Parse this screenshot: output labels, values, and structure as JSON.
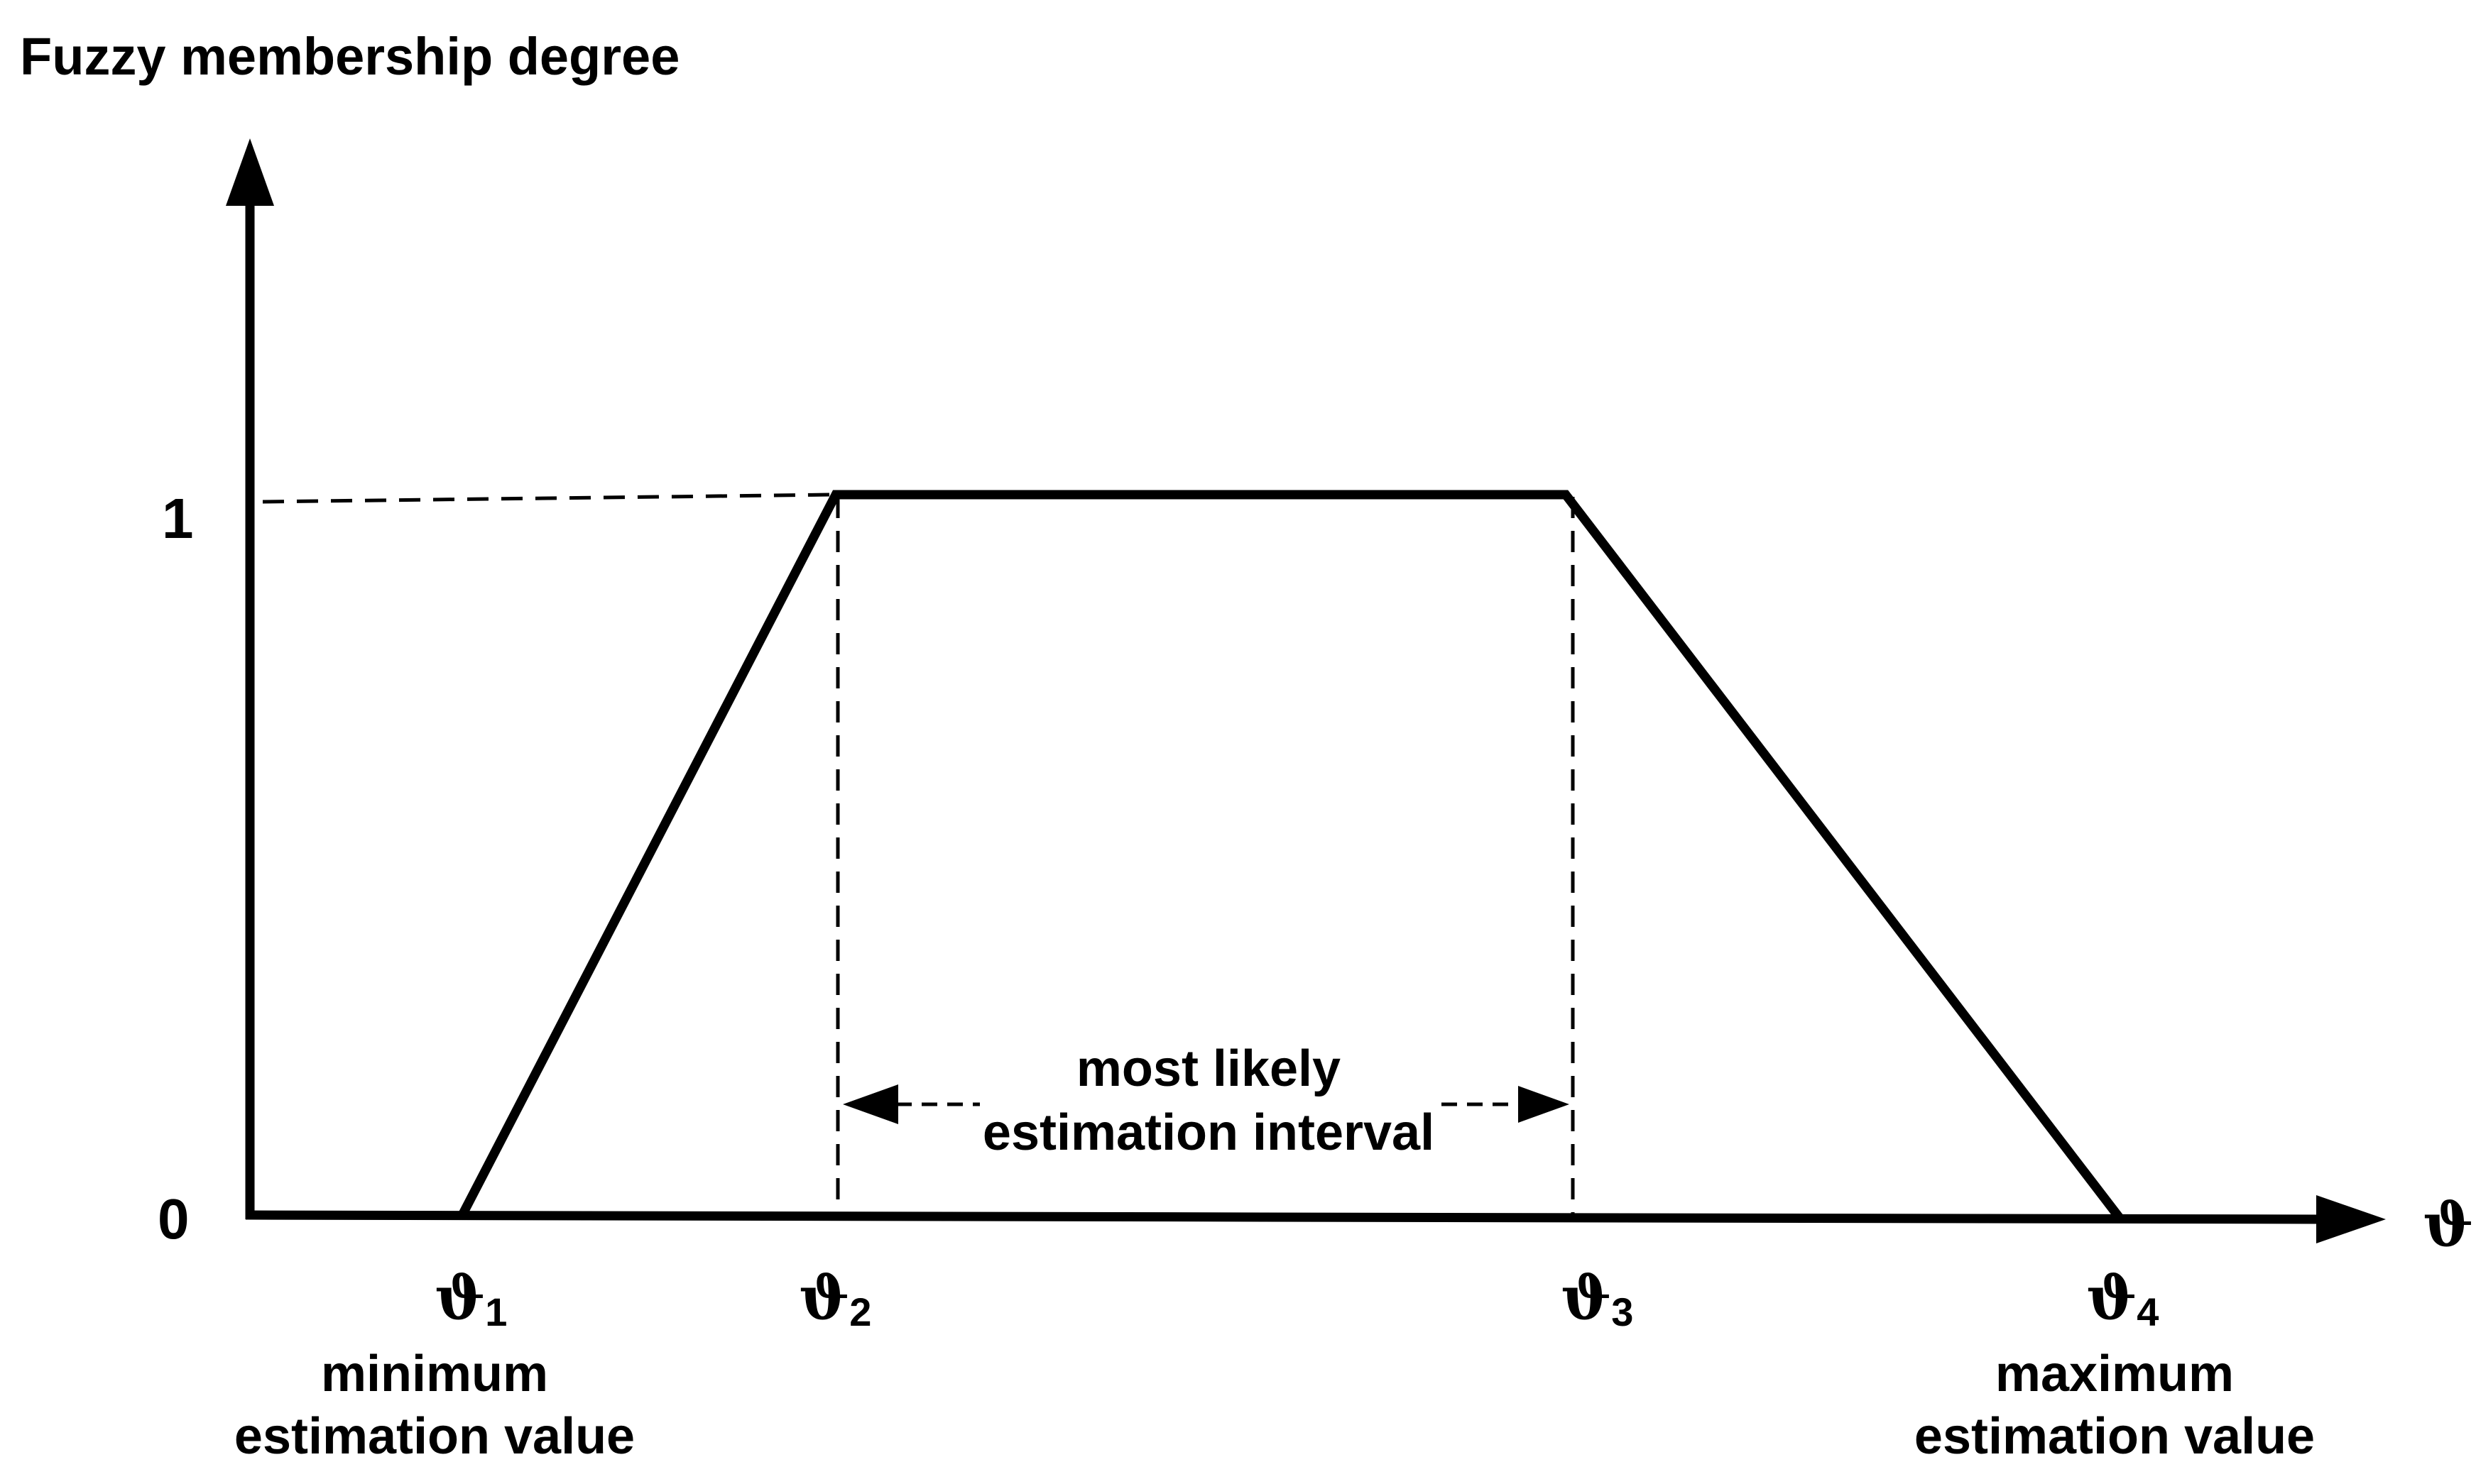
{
  "title": "Fuzzy membership degree",
  "y_ticks": [
    "1",
    "0"
  ],
  "x_axis_symbol": "ϑ",
  "points": [
    {
      "symbol": "ϑ",
      "subscript": "1",
      "caption": [
        "minimum",
        "estimation value"
      ]
    },
    {
      "symbol": "ϑ",
      "subscript": "2",
      "caption": []
    },
    {
      "symbol": "ϑ",
      "subscript": "3",
      "caption": []
    },
    {
      "symbol": "ϑ",
      "subscript": "4",
      "caption": [
        "maximum",
        "estimation value"
      ]
    }
  ],
  "interval_label": [
    "most likely",
    "estimation interval"
  ],
  "chart_data": {
    "type": "line",
    "series": [
      {
        "x": [
          "ϑ1",
          "ϑ2",
          "ϑ3",
          "ϑ4"
        ],
        "values": [
          0,
          1,
          1,
          0
        ]
      }
    ],
    "ylim": [
      0,
      1
    ]
  }
}
